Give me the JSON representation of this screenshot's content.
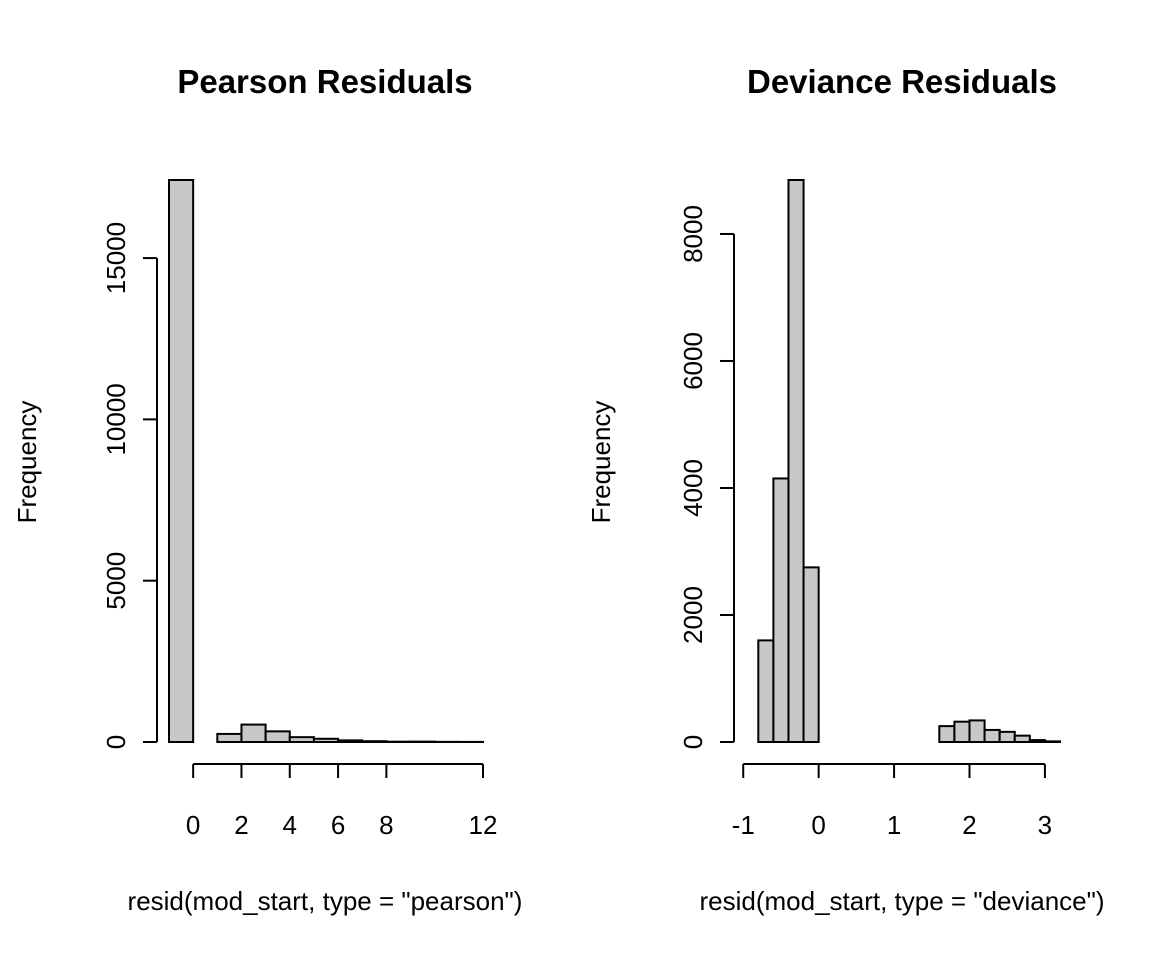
{
  "chart_data": [
    {
      "type": "bar",
      "title": "Pearson Residuals",
      "xlabel": "resid(mod_start, type = \"pearson\")",
      "ylabel": "Frequency",
      "bin_edges": [
        -1,
        0,
        1,
        2,
        3,
        4,
        5,
        6,
        7,
        8,
        9,
        10,
        11,
        12
      ],
      "values": [
        17420,
        0,
        250,
        540,
        330,
        150,
        100,
        50,
        25,
        10,
        12,
        5,
        3
      ],
      "x_ticks": [
        0,
        2,
        4,
        6,
        8,
        12
      ],
      "x_tick_labels": [
        "0",
        "2",
        "4",
        "6",
        "8",
        "12"
      ],
      "y_ticks": [
        0,
        5000,
        10000,
        15000
      ],
      "y_tick_labels": [
        "0",
        "5000",
        "10000",
        "15000"
      ],
      "xlim": [
        -1,
        12
      ],
      "ylim": [
        0,
        17420
      ],
      "bar_color": "#c8c8c8",
      "grid": false,
      "legend": "none"
    },
    {
      "type": "bar",
      "title": "Deviance Residuals",
      "xlabel": "resid(mod_start, type = \"deviance\")",
      "ylabel": "Frequency",
      "bin_edges": [
        -0.8,
        -0.6,
        -0.4,
        -0.2,
        0,
        0.2,
        0.4,
        0.6,
        0.8,
        1.0,
        1.2,
        1.4,
        1.6,
        1.8,
        2.0,
        2.2,
        2.4,
        2.6,
        2.8,
        3.0,
        3.2
      ],
      "values": [
        1600,
        4150,
        8850,
        2750,
        0,
        0,
        0,
        0,
        0,
        0,
        0,
        0,
        250,
        320,
        340,
        190,
        160,
        100,
        30,
        10
      ],
      "x_ticks": [
        -1,
        0,
        1,
        2,
        3
      ],
      "x_tick_labels": [
        "-1",
        "0",
        "1",
        "2",
        "3"
      ],
      "y_ticks": [
        0,
        2000,
        4000,
        6000,
        8000
      ],
      "y_tick_labels": [
        "0",
        "2000",
        "4000",
        "6000",
        "8000"
      ],
      "xlim": [
        -0.95,
        3.2
      ],
      "ylim": [
        0,
        8850
      ],
      "bar_color": "#c8c8c8",
      "grid": false,
      "legend": "none"
    }
  ]
}
